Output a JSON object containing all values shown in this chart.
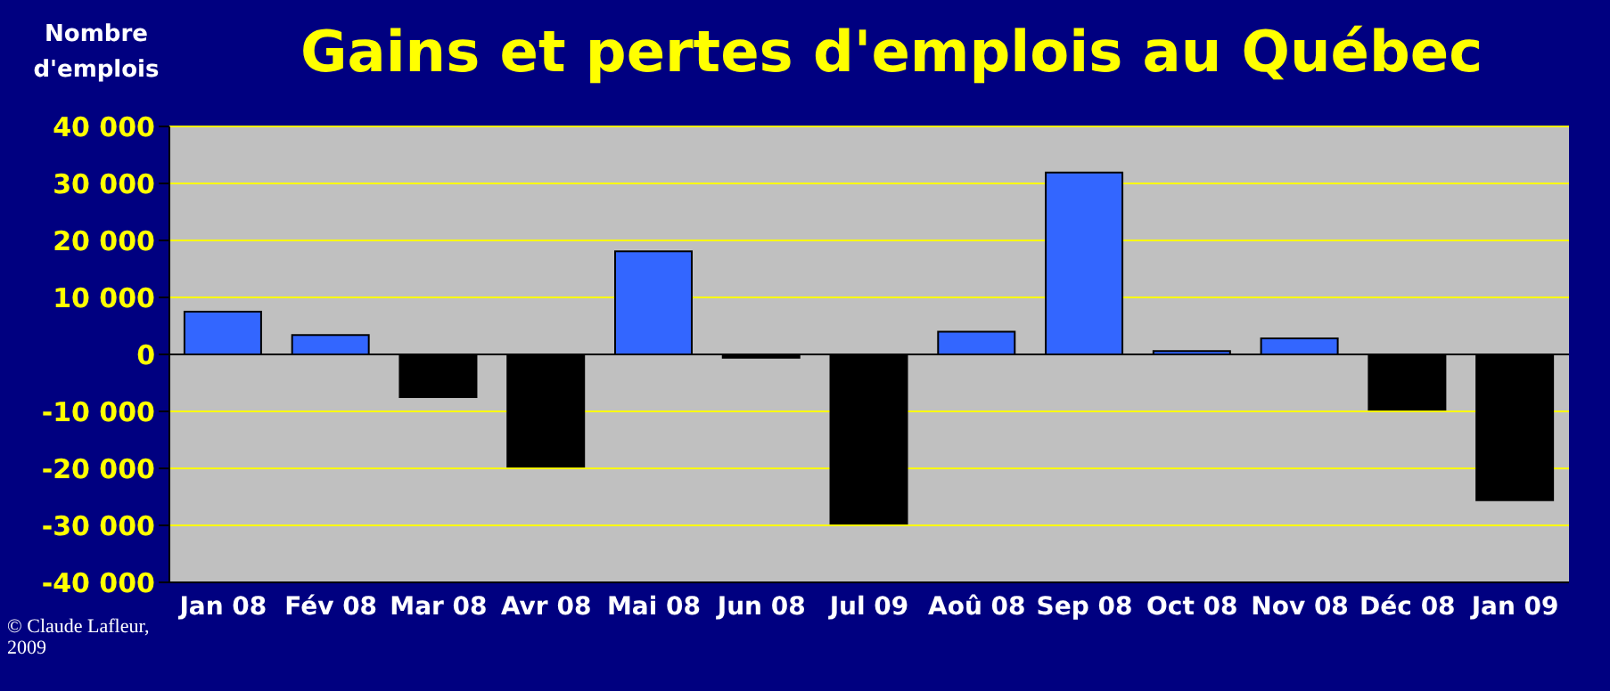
{
  "chart_data": {
    "type": "bar",
    "title": "Gains et pertes d'emplois au Québec",
    "ylabel": "Nombre d'emplois",
    "categories": [
      "Jan 08",
      "Fév 08",
      "Mar 08",
      "Avr 08",
      "Mai 08",
      "Jun 08",
      "Jul 09",
      "Aoû 08",
      "Sep 08",
      "Oct 08",
      "Nov 08",
      "Déc 08",
      "Jan 09"
    ],
    "values": [
      7500,
      3400,
      -7500,
      -19700,
      18100,
      -600,
      -29700,
      4000,
      31900,
      600,
      2800,
      -9700,
      -25600
    ],
    "colors": [
      "#3366ff",
      "#3366ff",
      "#000000",
      "#000000",
      "#3366ff",
      "#000000",
      "#000000",
      "#3366ff",
      "#3366ff",
      "#3366ff",
      "#3366ff",
      "#000000",
      "#000000"
    ],
    "ylim": [
      -40000,
      40000
    ],
    "yticks": [
      {
        "value": -40000,
        "label": "-40 000"
      },
      {
        "value": -30000,
        "label": "-30 000"
      },
      {
        "value": -20000,
        "label": "-20 000"
      },
      {
        "value": -10000,
        "label": "-10 000"
      },
      0,
      {
        "value": 10000,
        "label": "10 000"
      },
      {
        "value": 20000,
        "label": "20 000"
      },
      {
        "value": 30000,
        "label": "30 000"
      },
      {
        "value": 40000,
        "label": "40 000"
      }
    ],
    "grid": "y",
    "annotations": [
      "© Claude Lafleur, 2009"
    ]
  }
}
